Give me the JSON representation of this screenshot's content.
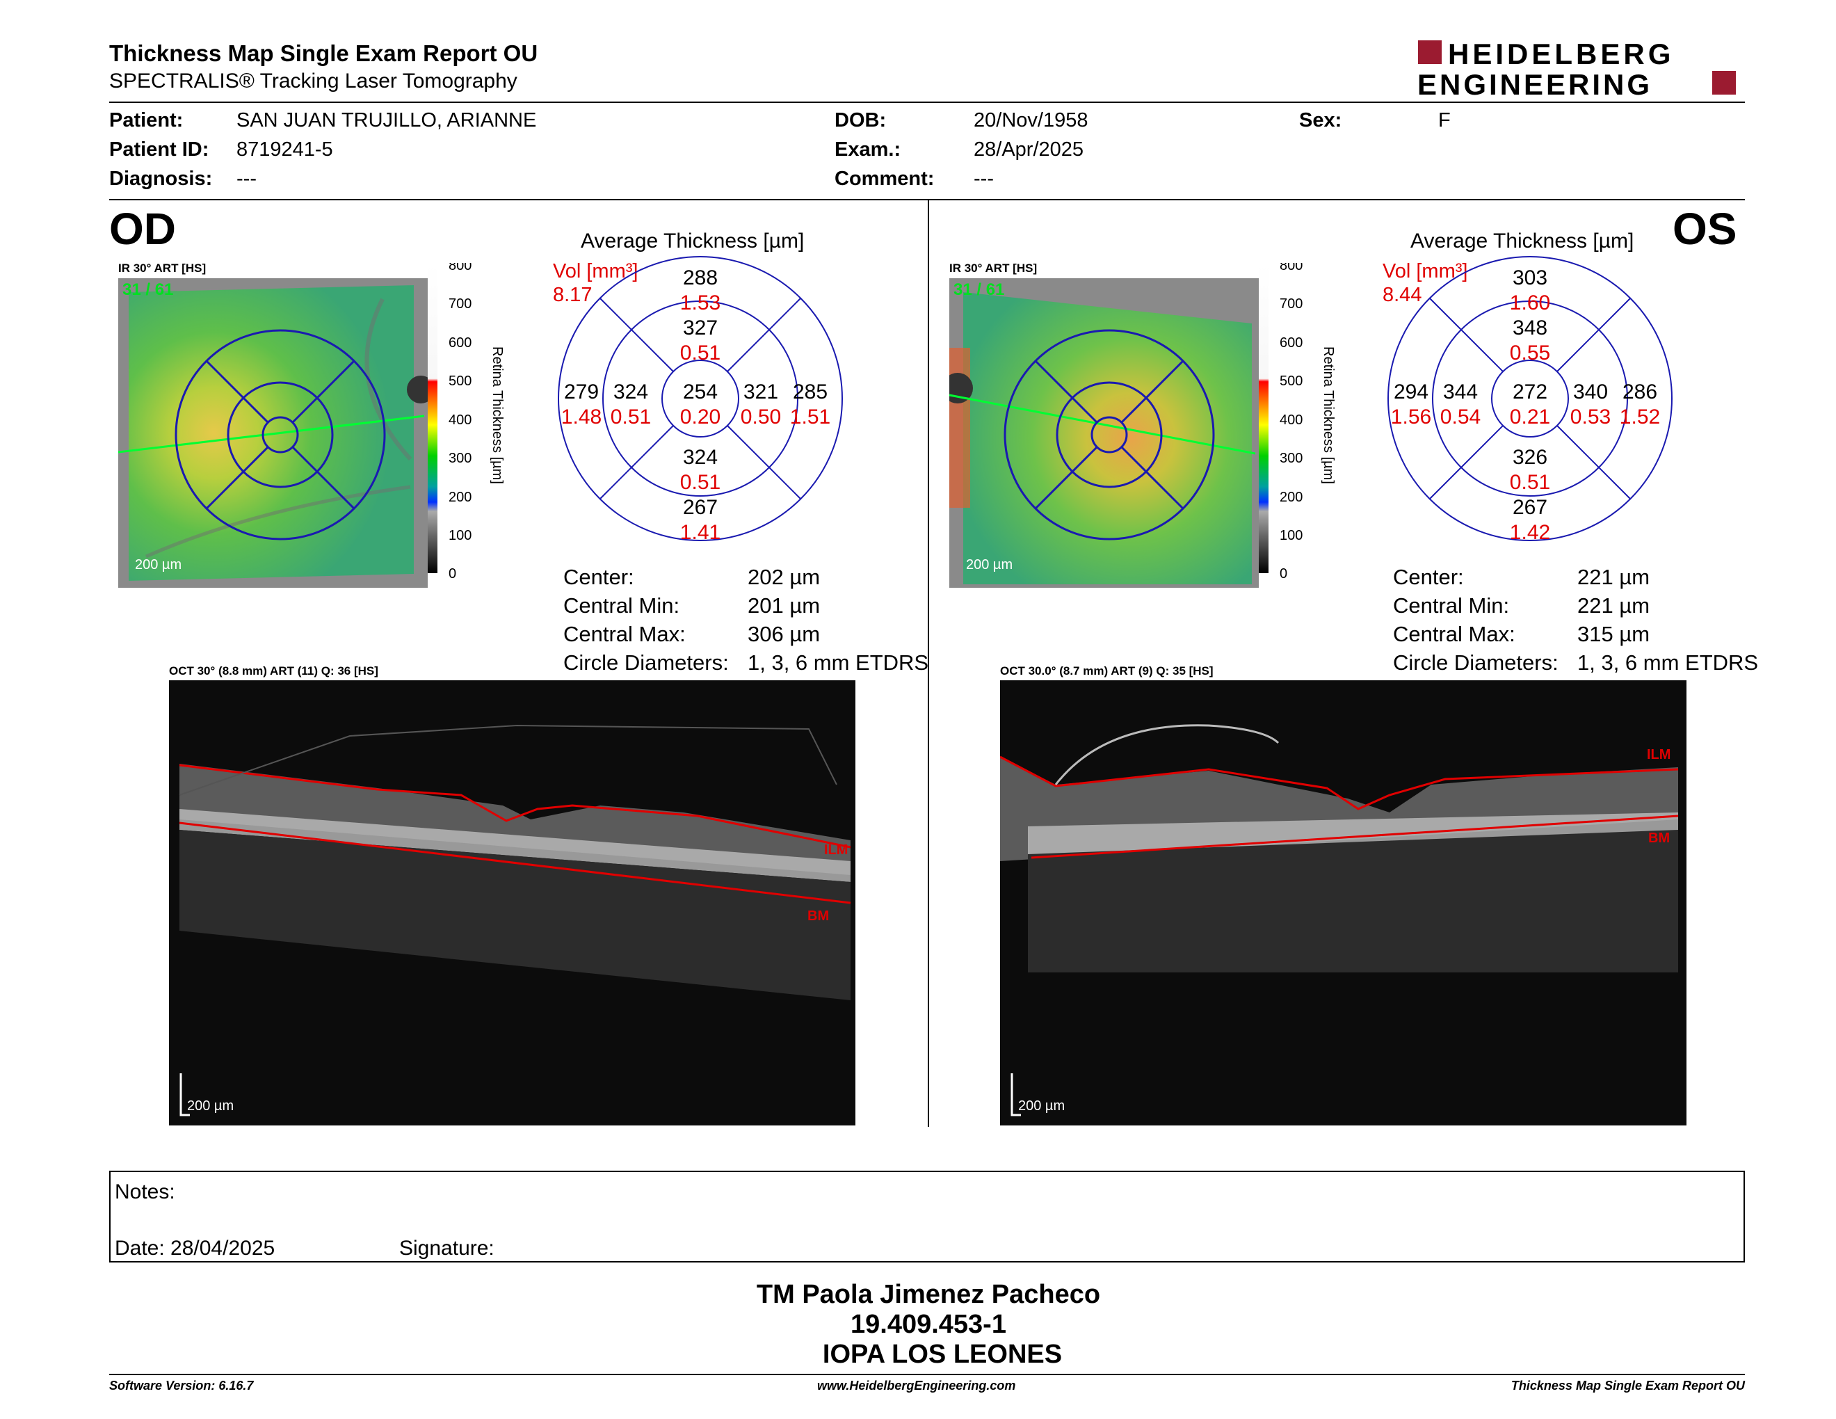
{
  "header": {
    "title": "Thickness Map Single Exam Report OU",
    "subtitle": "SPECTRALIS® Tracking Laser Tomography",
    "logo_line1": "HEIDELBERG",
    "logo_line2": "ENGINEERING",
    "brand_color": "#9b1b30"
  },
  "patient": {
    "patient_label": "Patient:",
    "patient_value": "SAN JUAN TRUJILLO, ARIANNE",
    "id_label": "Patient ID:",
    "id_value": "8719241-5",
    "diag_label": "Diagnosis:",
    "diag_value": "---",
    "dob_label": "DOB:",
    "dob_value": "20/Nov/1958",
    "exam_label": "Exam.:",
    "exam_value": "28/Apr/2025",
    "comment_label": "Comment:",
    "comment_value": "---",
    "sex_label": "Sex:",
    "sex_value": "F"
  },
  "od": {
    "eye": "OD",
    "ir_label": "IR 30° ART [HS]",
    "ir_count": "31 / 61",
    "scale": "200 µm",
    "colorbar_title": "Retina Thickness [µm]",
    "colorbar_ticks": [
      "800",
      "700",
      "600",
      "500",
      "400",
      "300",
      "200",
      "100",
      "0"
    ],
    "etdrs_title": "Average Thickness [µm]",
    "vol_label": "Vol [mm³]",
    "vol_total": "8.17",
    "sectors": {
      "outer_sup": {
        "t": "288",
        "v": "1.53"
      },
      "inner_sup": {
        "t": "327",
        "v": "0.51"
      },
      "center": {
        "t": "254",
        "v": "0.20"
      },
      "inner_temp": {
        "t": "324",
        "v": "0.51"
      },
      "outer_temp": {
        "t": "279",
        "v": "1.48"
      },
      "inner_nas": {
        "t": "321",
        "v": "0.50"
      },
      "outer_nas": {
        "t": "285",
        "v": "1.51"
      },
      "inner_inf": {
        "t": "324",
        "v": "0.51"
      },
      "outer_inf": {
        "t": "267",
        "v": "1.41"
      }
    },
    "stats": {
      "center_label": "Center:",
      "center_value": "202 µm",
      "min_label": "Central Min:",
      "min_value": "201 µm",
      "max_label": "Central Max:",
      "max_value": "306 µm",
      "diam_label": "Circle Diameters:",
      "diam_value": "1, 3, 6 mm ETDRS"
    },
    "oct_label": "OCT 30° (8.8 mm) ART (11) Q: 36 [HS]",
    "oct_scale": "200 µm",
    "ilm": "ILM",
    "bm": "BM"
  },
  "os": {
    "eye": "OS",
    "ir_label": "IR 30° ART [HS]",
    "ir_count": "31 / 61",
    "scale": "200 µm",
    "colorbar_title": "Retina Thickness [µm]",
    "colorbar_ticks": [
      "800",
      "700",
      "600",
      "500",
      "400",
      "300",
      "200",
      "100",
      "0"
    ],
    "etdrs_title": "Average Thickness [µm]",
    "vol_label": "Vol [mm³]",
    "vol_total": "8.44",
    "sectors": {
      "outer_sup": {
        "t": "303",
        "v": "1.60"
      },
      "inner_sup": {
        "t": "348",
        "v": "0.55"
      },
      "center": {
        "t": "272",
        "v": "0.21"
      },
      "inner_temp": {
        "t": "344",
        "v": "0.54"
      },
      "outer_temp": {
        "t": "294",
        "v": "1.56"
      },
      "inner_nas": {
        "t": "340",
        "v": "0.53"
      },
      "outer_nas": {
        "t": "286",
        "v": "1.52"
      },
      "inner_inf": {
        "t": "326",
        "v": "0.51"
      },
      "outer_inf": {
        "t": "267",
        "v": "1.42"
      }
    },
    "stats": {
      "center_label": "Center:",
      "center_value": "221 µm",
      "min_label": "Central Min:",
      "min_value": "221 µm",
      "max_label": "Central Max:",
      "max_value": "315 µm",
      "diam_label": "Circle Diameters:",
      "diam_value": "1, 3, 6 mm ETDRS"
    },
    "oct_label": "OCT 30.0° (8.7 mm) ART (9) Q: 35 [HS]",
    "oct_scale": "200 µm",
    "ilm": "ILM",
    "bm": "BM"
  },
  "notes": {
    "notes_label": "Notes:",
    "date_label": "Date: 28/04/2025",
    "signature_label": "Signature:"
  },
  "signer": {
    "name": "TM Paola Jimenez Pacheco",
    "rut": "19.409.453-1",
    "institution": "IOPA LOS LEONES"
  },
  "footer": {
    "software": "Software Version: 6.16.7",
    "website": "www.HeidelbergEngineering.com",
    "report": "Thickness Map Single Exam Report OU"
  }
}
